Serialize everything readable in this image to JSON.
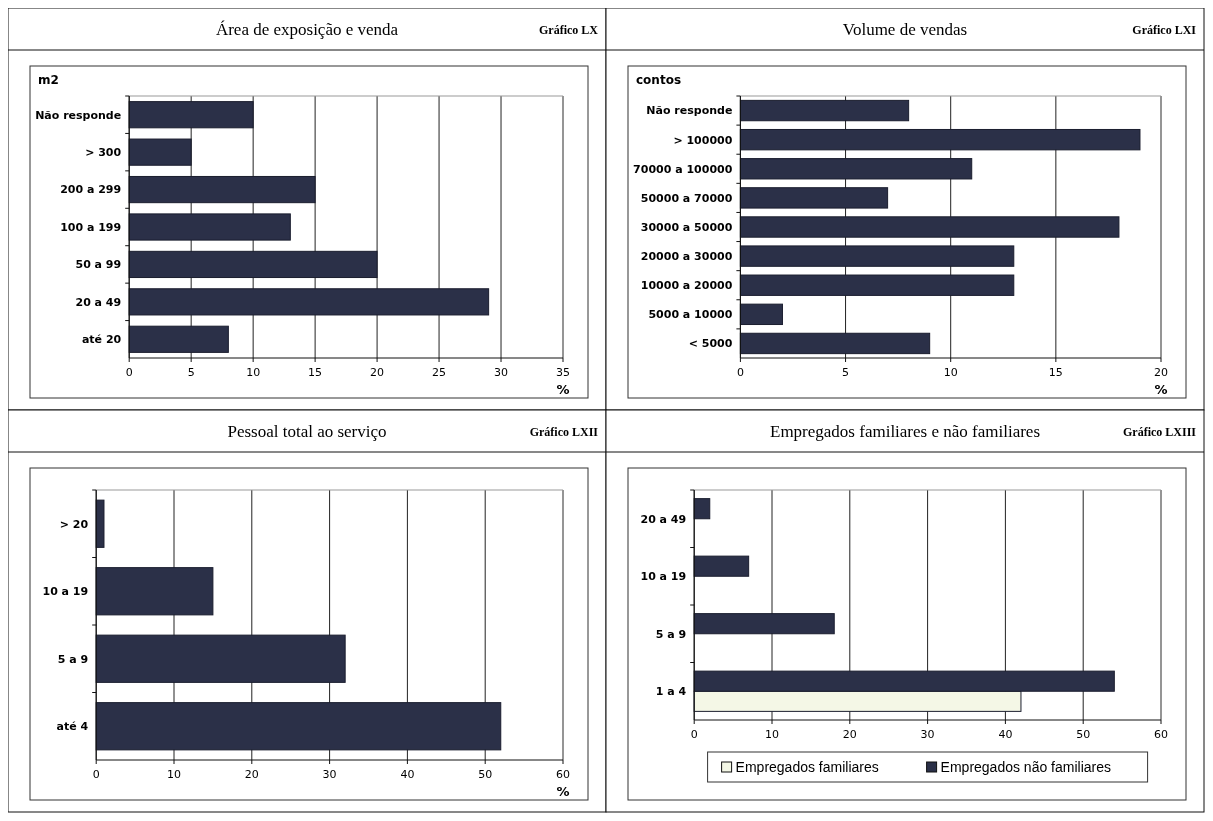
{
  "chart_data": [
    {
      "type": "bar",
      "orientation": "horizontal",
      "title": "Área de exposição e venda",
      "annotations": [
        "Gráfico LX"
      ],
      "ylabel": "m2",
      "xlabel": "%",
      "categories": [
        "Não responde",
        "> 300",
        "200 a 299",
        "100 a 199",
        "50 a 99",
        "20 a 49",
        "até 20"
      ],
      "values": [
        10,
        5,
        15,
        13,
        20,
        29,
        8
      ],
      "color": "#2b3048",
      "xlim": [
        0,
        35
      ],
      "xticks": [
        0,
        5,
        10,
        15,
        20,
        25,
        30,
        35
      ],
      "grid": "x"
    },
    {
      "type": "bar",
      "orientation": "horizontal",
      "title": "Volume de vendas",
      "annotations": [
        "Gráfico LXI"
      ],
      "ylabel": "contos",
      "xlabel": "%",
      "categories": [
        "Não responde",
        "> 100000",
        "70000 a 100000",
        "50000 a 70000",
        "30000 a 50000",
        "20000 a 30000",
        "10000 a 20000",
        "5000 a 10000",
        "< 5000"
      ],
      "values": [
        8,
        19,
        11,
        7,
        18,
        13,
        13,
        2,
        9
      ],
      "color": "#2b3048",
      "xlim": [
        0,
        20
      ],
      "xticks": [
        0,
        5,
        10,
        15,
        20
      ],
      "grid": "x"
    },
    {
      "type": "bar",
      "orientation": "horizontal",
      "title": "Pessoal total ao serviço",
      "annotations": [
        "Gráfico LXII"
      ],
      "xlabel": "%",
      "categories": [
        "> 20",
        "10 a 19",
        "5 a 9",
        "até 4"
      ],
      "values": [
        1,
        15,
        32,
        52
      ],
      "color": "#2b3048",
      "xlim": [
        0,
        60
      ],
      "xticks": [
        0,
        10,
        20,
        30,
        40,
        50,
        60
      ],
      "grid": "x"
    },
    {
      "type": "bar",
      "orientation": "horizontal",
      "title": "Empregados familiares e não familiares",
      "annotations": [
        "Gráfico LXIII"
      ],
      "categories": [
        "20 a 49",
        "10 a 19",
        "5 a 9",
        "1 a 4"
      ],
      "series": [
        {
          "name": "Empregados familiares",
          "color": "#f4f7e6",
          "values": [
            null,
            null,
            null,
            42
          ]
        },
        {
          "name": "Empregados não familiares",
          "color": "#2b3048",
          "values": [
            2,
            7,
            18,
            54
          ]
        }
      ],
      "xlim": [
        0,
        60
      ],
      "xticks": [
        0,
        10,
        20,
        30,
        40,
        50,
        60
      ],
      "grid": "x",
      "legend": "bottom"
    }
  ]
}
